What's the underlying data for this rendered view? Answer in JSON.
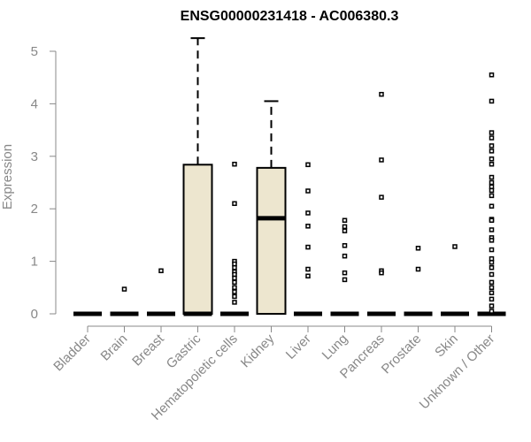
{
  "chart_data": {
    "type": "boxplot",
    "title": "ENSG00000231418 - AC006380.3",
    "xlabel": "",
    "ylabel": "Expression",
    "ylim": [
      0,
      5.3
    ],
    "yticks": [
      0,
      1,
      2,
      3,
      4,
      5
    ],
    "box_color": "#ede6cf",
    "axis_color": "#888888",
    "categories": [
      "Bladder",
      "Brain",
      "Breast",
      "Gastric",
      "Hematopoietic cells",
      "Kidney",
      "Liver",
      "Lung",
      "Pancreas",
      "Prostate",
      "Skin",
      "Unknown / Other"
    ],
    "boxes": [
      {
        "q1": 0,
        "median": 0,
        "q3": 0,
        "whisker_low": 0,
        "whisker_high": 0,
        "outliers": []
      },
      {
        "q1": 0,
        "median": 0,
        "q3": 0,
        "whisker_low": 0,
        "whisker_high": 0,
        "outliers": [
          0.47
        ]
      },
      {
        "q1": 0,
        "median": 0,
        "q3": 0,
        "whisker_low": 0,
        "whisker_high": 0,
        "outliers": [
          0.82
        ]
      },
      {
        "q1": 0,
        "median": 0,
        "q3": 2.84,
        "whisker_low": 0,
        "whisker_high": 5.25,
        "outliers": []
      },
      {
        "q1": 0,
        "median": 0,
        "q3": 0,
        "whisker_low": 0,
        "whisker_high": 0,
        "outliers": [
          2.85,
          2.1,
          1.0,
          0.95,
          0.88,
          0.8,
          0.75,
          0.68,
          0.6,
          0.5,
          0.42,
          0.33,
          0.22
        ]
      },
      {
        "q1": 0,
        "median": 1.82,
        "q3": 2.78,
        "whisker_low": 0,
        "whisker_high": 4.05,
        "outliers": []
      },
      {
        "q1": 0,
        "median": 0,
        "q3": 0,
        "whisker_low": 0,
        "whisker_high": 0,
        "outliers": [
          2.84,
          2.34,
          1.92,
          1.67,
          1.27,
          0.85,
          0.72
        ]
      },
      {
        "q1": 0,
        "median": 0,
        "q3": 0,
        "whisker_low": 0,
        "whisker_high": 0,
        "outliers": [
          1.78,
          1.66,
          1.58,
          1.3,
          1.1,
          0.78,
          0.65
        ]
      },
      {
        "q1": 0,
        "median": 0,
        "q3": 0,
        "whisker_low": 0,
        "whisker_high": 0,
        "outliers": [
          4.18,
          2.93,
          2.22,
          0.82,
          0.78
        ]
      },
      {
        "q1": 0,
        "median": 0,
        "q3": 0,
        "whisker_low": 0,
        "whisker_high": 0,
        "outliers": [
          1.25,
          0.85
        ]
      },
      {
        "q1": 0,
        "median": 0,
        "q3": 0,
        "whisker_low": 0,
        "whisker_high": 0,
        "outliers": [
          1.28
        ]
      },
      {
        "q1": 0,
        "median": 0,
        "q3": 0,
        "whisker_low": 0,
        "whisker_high": 0,
        "outliers": [
          4.55,
          4.05,
          3.45,
          3.35,
          3.2,
          3.1,
          2.95,
          2.85,
          2.6,
          2.5,
          2.42,
          2.35,
          2.25,
          2.05,
          1.8,
          1.78,
          1.6,
          1.45,
          1.4,
          1.22,
          1.05,
          0.98,
          0.88,
          0.75,
          0.6,
          0.5,
          0.4,
          0.28,
          0.15,
          0.05
        ]
      }
    ]
  }
}
